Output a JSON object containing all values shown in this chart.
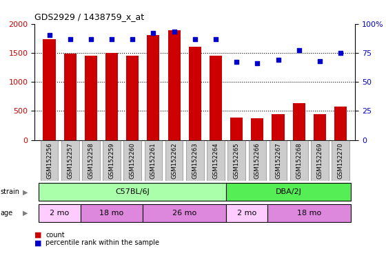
{
  "title": "GDS2929 / 1438759_x_at",
  "samples": [
    "GSM152256",
    "GSM152257",
    "GSM152258",
    "GSM152259",
    "GSM152260",
    "GSM152261",
    "GSM152262",
    "GSM152263",
    "GSM152264",
    "GSM152265",
    "GSM152266",
    "GSM152267",
    "GSM152268",
    "GSM152269",
    "GSM152270"
  ],
  "counts": [
    1730,
    1490,
    1450,
    1500,
    1450,
    1800,
    1890,
    1600,
    1450,
    380,
    370,
    450,
    630,
    450,
    580
  ],
  "percentile_ranks": [
    90,
    87,
    87,
    87,
    87,
    92,
    93,
    87,
    87,
    67,
    66,
    69,
    77,
    68,
    75
  ],
  "bar_color": "#cc0000",
  "dot_color": "#0000cc",
  "plot_bg_color": "#ffffff",
  "ylim_left": [
    0,
    2000
  ],
  "ylim_right": [
    0,
    100
  ],
  "yticks_left": [
    0,
    500,
    1000,
    1500,
    2000
  ],
  "yticks_right": [
    0,
    25,
    50,
    75,
    100
  ],
  "ytick_labels_right": [
    "0",
    "25",
    "50",
    "75",
    "100%"
  ],
  "axis_label_color_left": "#cc0000",
  "axis_label_color_right": "#0000cc",
  "strain_groups": [
    {
      "label": "C57BL/6J",
      "start": 0,
      "end": 8,
      "color": "#aaffaa"
    },
    {
      "label": "DBA/2J",
      "start": 9,
      "end": 14,
      "color": "#55ee55"
    }
  ],
  "age_spans": [
    {
      "label": "2 mo",
      "start": 0,
      "end": 2,
      "color": "#ffccff"
    },
    {
      "label": "18 mo",
      "start": 2,
      "end": 5,
      "color": "#dd88dd"
    },
    {
      "label": "26 mo",
      "start": 5,
      "end": 9,
      "color": "#dd88dd"
    },
    {
      "label": "2 mo",
      "start": 9,
      "end": 11,
      "color": "#ffccff"
    },
    {
      "label": "18 mo",
      "start": 11,
      "end": 15,
      "color": "#dd88dd"
    }
  ],
  "tick_box_color": "#cccccc",
  "fig_bg": "#ffffff"
}
